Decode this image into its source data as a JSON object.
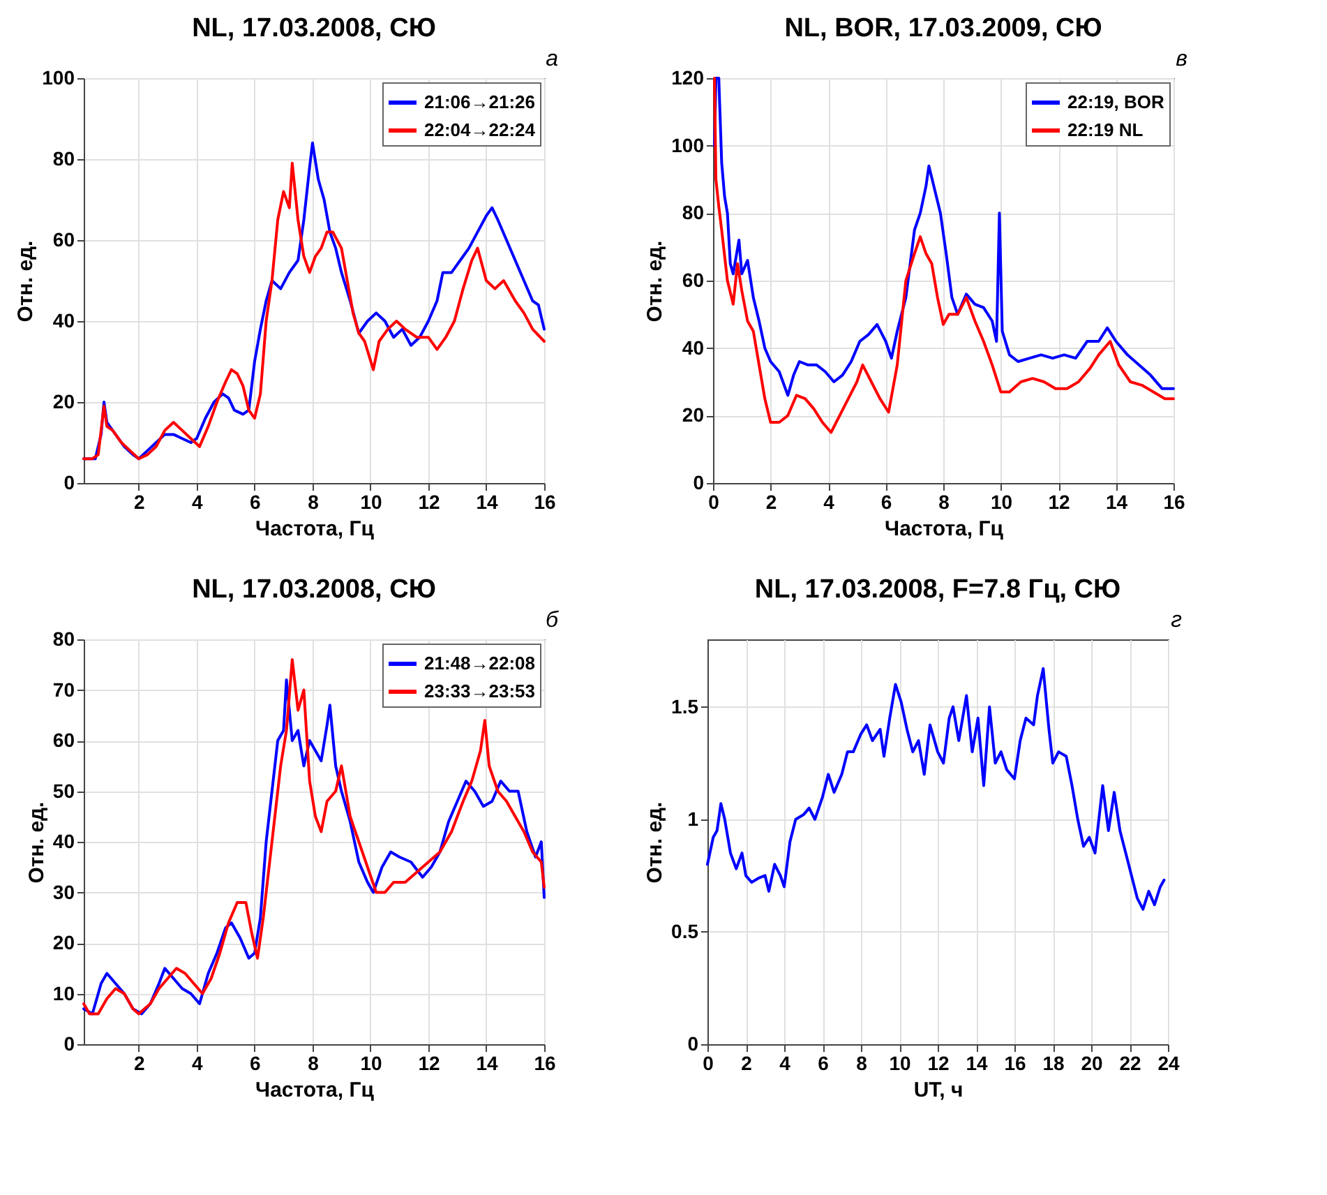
{
  "chart_data": [
    {
      "type": "line",
      "title": "NL, 17.03.2008, СЮ",
      "xlabel": "Частота, Гц",
      "ylabel": "Отн. ед.",
      "annotations": [
        "а"
      ],
      "xlim": [
        0.1,
        16
      ],
      "xticks": [
        2,
        4,
        6,
        8,
        10,
        12,
        14,
        16
      ],
      "ylim": [
        0,
        100
      ],
      "yticks": [
        0,
        20,
        40,
        60,
        80,
        100
      ],
      "grid": true,
      "legend": "top right",
      "line_style": "solid",
      "series": [
        {
          "name": "21:06→21:26",
          "color": "#0000ff",
          "x": [
            0.1,
            0.3,
            0.5,
            0.7,
            0.8,
            0.9,
            1.0,
            1.2,
            1.5,
            1.8,
            2.0,
            2.3,
            2.6,
            2.9,
            3.2,
            3.5,
            3.8,
            4.0,
            4.3,
            4.6,
            4.9,
            5.1,
            5.3,
            5.6,
            5.8,
            6.0,
            6.2,
            6.4,
            6.6,
            6.9,
            7.2,
            7.5,
            7.7,
            7.9,
            8.0,
            8.2,
            8.4,
            8.6,
            8.8,
            9.0,
            9.3,
            9.6,
            9.9,
            10.2,
            10.5,
            10.8,
            11.1,
            11.4,
            11.7,
            12.0,
            12.3,
            12.5,
            12.8,
            13.1,
            13.4,
            13.7,
            14.0,
            14.2,
            14.4,
            14.7,
            15.0,
            15.3,
            15.6,
            15.8,
            16.0
          ],
          "values": [
            6,
            6,
            6,
            12,
            20,
            15,
            14,
            12,
            9,
            7,
            6,
            8,
            10,
            12,
            12,
            11,
            10,
            11,
            16,
            20,
            22,
            21,
            18,
            17,
            18,
            30,
            38,
            45,
            50,
            48,
            52,
            55,
            65,
            78,
            84,
            75,
            70,
            62,
            58,
            52,
            45,
            37,
            40,
            42,
            40,
            36,
            38,
            34,
            36,
            40,
            45,
            52,
            52,
            55,
            58,
            62,
            66,
            68,
            65,
            60,
            55,
            50,
            45,
            44,
            38
          ]
        },
        {
          "name": "22:04→22:24",
          "color": "#ff0000",
          "x": [
            0.1,
            0.4,
            0.6,
            0.8,
            0.9,
            1.1,
            1.4,
            1.7,
            2.0,
            2.3,
            2.6,
            2.9,
            3.2,
            3.5,
            3.8,
            4.1,
            4.4,
            4.7,
            5.0,
            5.2,
            5.4,
            5.6,
            5.8,
            6.0,
            6.2,
            6.4,
            6.6,
            6.8,
            7.0,
            7.2,
            7.3,
            7.5,
            7.7,
            7.9,
            8.1,
            8.3,
            8.5,
            8.7,
            9.0,
            9.2,
            9.4,
            9.6,
            9.8,
            10.1,
            10.3,
            10.6,
            10.9,
            11.2,
            11.6,
            12.0,
            12.3,
            12.6,
            12.9,
            13.2,
            13.5,
            13.7,
            14.0,
            14.3,
            14.6,
            15.0,
            15.3,
            15.6,
            16.0
          ],
          "values": [
            6,
            6,
            7,
            19,
            14,
            13,
            10,
            8,
            6,
            7,
            9,
            13,
            15,
            13,
            11,
            9,
            14,
            20,
            25,
            28,
            27,
            24,
            18,
            16,
            22,
            40,
            50,
            65,
            72,
            68,
            79,
            65,
            56,
            52,
            56,
            58,
            62,
            62,
            58,
            50,
            42,
            37,
            35,
            28,
            35,
            38,
            40,
            38,
            36,
            36,
            33,
            36,
            40,
            48,
            55,
            58,
            50,
            48,
            50,
            45,
            42,
            38,
            35
          ]
        }
      ]
    },
    {
      "type": "line",
      "title": "NL,  BOR, 17.03.2009, СЮ",
      "xlabel": "Частота, Гц",
      "ylabel": "Отн. ед.",
      "annotations": [
        "в"
      ],
      "xlim": [
        0,
        16
      ],
      "xticks": [
        0,
        2,
        4,
        6,
        8,
        10,
        12,
        14,
        16
      ],
      "ylim": [
        0,
        120
      ],
      "yticks": [
        0,
        20,
        40,
        60,
        80,
        100,
        120
      ],
      "grid": true,
      "legend": "top right",
      "line_style": "solid",
      "series": [
        {
          "name": "22:19, BOR",
          "color": "#0000ff",
          "x": [
            0.05,
            0.1,
            0.2,
            0.3,
            0.4,
            0.5,
            0.6,
            0.7,
            0.9,
            1.0,
            1.2,
            1.4,
            1.6,
            1.8,
            2.0,
            2.3,
            2.6,
            2.8,
            3.0,
            3.3,
            3.6,
            3.9,
            4.2,
            4.5,
            4.8,
            5.1,
            5.4,
            5.7,
            6.0,
            6.2,
            6.4,
            6.7,
            7.0,
            7.2,
            7.4,
            7.5,
            7.7,
            7.9,
            8.1,
            8.3,
            8.5,
            8.8,
            9.1,
            9.4,
            9.7,
            9.85,
            9.95,
            10.05,
            10.3,
            10.6,
            11.0,
            11.4,
            11.8,
            12.2,
            12.6,
            13.0,
            13.4,
            13.7,
            14.0,
            14.4,
            14.8,
            15.2,
            15.6,
            16.0
          ],
          "values": [
            100,
            120,
            120,
            95,
            85,
            80,
            65,
            62,
            72,
            62,
            66,
            55,
            48,
            40,
            36,
            33,
            26,
            32,
            36,
            35,
            35,
            33,
            30,
            32,
            36,
            42,
            44,
            47,
            42,
            37,
            45,
            55,
            75,
            80,
            88,
            94,
            87,
            80,
            68,
            55,
            50,
            56,
            53,
            52,
            48,
            42,
            80,
            45,
            38,
            36,
            37,
            38,
            37,
            38,
            37,
            42,
            42,
            46,
            42,
            38,
            35,
            32,
            28,
            28
          ]
        },
        {
          "name": "22:19 NL",
          "color": "#ff0000",
          "x": [
            0.05,
            0.1,
            0.2,
            0.3,
            0.5,
            0.7,
            0.85,
            1.0,
            1.2,
            1.4,
            1.6,
            1.8,
            2.0,
            2.3,
            2.6,
            2.9,
            3.2,
            3.5,
            3.8,
            4.1,
            4.4,
            4.7,
            5.0,
            5.2,
            5.5,
            5.8,
            6.1,
            6.4,
            6.7,
            7.0,
            7.2,
            7.4,
            7.6,
            7.8,
            8.0,
            8.2,
            8.5,
            8.8,
            9.1,
            9.4,
            9.7,
            10.0,
            10.3,
            10.7,
            11.1,
            11.5,
            11.9,
            12.3,
            12.7,
            13.1,
            13.4,
            13.8,
            14.1,
            14.5,
            14.9,
            15.3,
            15.7,
            16.0
          ],
          "values": [
            120,
            90,
            82,
            75,
            60,
            53,
            65,
            57,
            48,
            45,
            35,
            25,
            18,
            18,
            20,
            26,
            25,
            22,
            18,
            15,
            20,
            25,
            30,
            35,
            30,
            25,
            21,
            35,
            60,
            68,
            73,
            68,
            65,
            55,
            47,
            50,
            50,
            55,
            48,
            42,
            35,
            27,
            27,
            30,
            31,
            30,
            28,
            28,
            30,
            34,
            38,
            42,
            35,
            30,
            29,
            27,
            25,
            25
          ]
        }
      ]
    },
    {
      "type": "line",
      "title": "NL, 17.03.2008, СЮ",
      "xlabel": "Частота, Гц",
      "ylabel": "Отн. ед.",
      "annotations": [
        "б"
      ],
      "xlim": [
        0.1,
        16
      ],
      "xticks": [
        2,
        4,
        6,
        8,
        10,
        12,
        14,
        16
      ],
      "ylim": [
        0,
        80
      ],
      "yticks": [
        0,
        10,
        20,
        30,
        40,
        50,
        60,
        70,
        80
      ],
      "grid": true,
      "legend": "top right",
      "line_style": "solid",
      "series": [
        {
          "name": "21:48→22:08",
          "color": "#0000ff",
          "x": [
            0.1,
            0.4,
            0.7,
            0.9,
            1.2,
            1.5,
            1.8,
            2.1,
            2.4,
            2.7,
            2.9,
            3.2,
            3.5,
            3.8,
            4.1,
            4.4,
            4.7,
            5.0,
            5.2,
            5.5,
            5.8,
            6.0,
            6.2,
            6.4,
            6.6,
            6.8,
            7.0,
            7.1,
            7.3,
            7.5,
            7.7,
            7.9,
            8.1,
            8.3,
            8.5,
            8.6,
            8.8,
            9.0,
            9.3,
            9.6,
            9.9,
            10.1,
            10.4,
            10.7,
            11.0,
            11.4,
            11.8,
            12.1,
            12.4,
            12.7,
            13.0,
            13.3,
            13.6,
            13.9,
            14.2,
            14.5,
            14.8,
            15.1,
            15.4,
            15.7,
            15.9,
            16.0
          ],
          "values": [
            7,
            6,
            12,
            14,
            12,
            10,
            7,
            6,
            8,
            12,
            15,
            13,
            11,
            10,
            8,
            14,
            18,
            23,
            24,
            21,
            17,
            18,
            25,
            40,
            50,
            60,
            62,
            72,
            60,
            62,
            55,
            60,
            58,
            56,
            63,
            67,
            55,
            50,
            44,
            36,
            32,
            30,
            35,
            38,
            37,
            36,
            33,
            35,
            38,
            44,
            48,
            52,
            50,
            47,
            48,
            52,
            50,
            50,
            42,
            37,
            40,
            29
          ]
        },
        {
          "name": "23:33→23:53",
          "color": "#ff0000",
          "x": [
            0.1,
            0.3,
            0.6,
            0.9,
            1.2,
            1.5,
            1.8,
            2.0,
            2.4,
            2.7,
            3.0,
            3.3,
            3.6,
            3.9,
            4.2,
            4.5,
            4.8,
            5.1,
            5.4,
            5.7,
            5.9,
            6.1,
            6.3,
            6.5,
            6.7,
            6.9,
            7.1,
            7.3,
            7.5,
            7.7,
            7.9,
            8.1,
            8.3,
            8.5,
            8.8,
            9.0,
            9.3,
            9.6,
            9.9,
            10.2,
            10.5,
            10.8,
            11.2,
            11.6,
            12.0,
            12.4,
            12.8,
            13.2,
            13.5,
            13.8,
            13.95,
            14.1,
            14.4,
            14.7,
            15.0,
            15.3,
            15.6,
            15.9,
            16.0
          ],
          "values": [
            8,
            6,
            6,
            9,
            11,
            10,
            7,
            6,
            8,
            11,
            13,
            15,
            14,
            12,
            10,
            13,
            18,
            24,
            28,
            28,
            22,
            17,
            25,
            35,
            45,
            55,
            62,
            76,
            66,
            70,
            52,
            45,
            42,
            48,
            50,
            55,
            45,
            40,
            35,
            30,
            30,
            32,
            32,
            34,
            36,
            38,
            42,
            48,
            52,
            58,
            64,
            55,
            50,
            48,
            45,
            42,
            38,
            36,
            31
          ]
        }
      ]
    },
    {
      "type": "line",
      "title": "NL, 17.03.2008, F=7.8 Гц, СЮ",
      "xlabel": "UT, ч",
      "ylabel": "Отн. ед.",
      "annotations": [
        "г"
      ],
      "xlim": [
        0,
        24
      ],
      "xticks": [
        0,
        2,
        4,
        6,
        8,
        10,
        12,
        14,
        16,
        18,
        20,
        22,
        24
      ],
      "ylim": [
        0,
        1.8
      ],
      "yticks": [
        0,
        0.5,
        1,
        1.5
      ],
      "grid": true,
      "line_style": "solid",
      "series": [
        {
          "color": "#0000ff",
          "x": [
            0,
            0.3,
            0.5,
            0.7,
            0.9,
            1.2,
            1.5,
            1.8,
            2.0,
            2.3,
            2.7,
            3.0,
            3.2,
            3.5,
            3.8,
            4.0,
            4.3,
            4.6,
            5.0,
            5.3,
            5.6,
            6.0,
            6.3,
            6.6,
            7.0,
            7.3,
            7.6,
            8.0,
            8.3,
            8.6,
            9.0,
            9.2,
            9.5,
            9.8,
            10.1,
            10.4,
            10.7,
            11.0,
            11.3,
            11.6,
            12.0,
            12.3,
            12.6,
            12.8,
            13.1,
            13.5,
            13.8,
            14.1,
            14.4,
            14.7,
            15.0,
            15.3,
            15.6,
            16.0,
            16.3,
            16.6,
            17.0,
            17.2,
            17.5,
            17.8,
            18.0,
            18.3,
            18.7,
            19.0,
            19.3,
            19.6,
            19.9,
            20.2,
            20.6,
            20.9,
            21.2,
            21.5,
            21.8,
            22.1,
            22.4,
            22.7,
            23.0,
            23.3,
            23.6,
            23.8
          ],
          "values": [
            0.8,
            0.92,
            0.95,
            1.07,
            1.0,
            0.85,
            0.78,
            0.85,
            0.75,
            0.72,
            0.74,
            0.75,
            0.68,
            0.8,
            0.75,
            0.7,
            0.9,
            1.0,
            1.02,
            1.05,
            1.0,
            1.1,
            1.2,
            1.12,
            1.2,
            1.3,
            1.3,
            1.38,
            1.42,
            1.35,
            1.4,
            1.28,
            1.45,
            1.6,
            1.52,
            1.4,
            1.3,
            1.35,
            1.2,
            1.42,
            1.3,
            1.25,
            1.45,
            1.5,
            1.35,
            1.55,
            1.3,
            1.45,
            1.15,
            1.5,
            1.25,
            1.3,
            1.22,
            1.18,
            1.35,
            1.45,
            1.42,
            1.55,
            1.67,
            1.4,
            1.25,
            1.3,
            1.28,
            1.15,
            1.0,
            0.88,
            0.92,
            0.85,
            1.15,
            0.95,
            1.12,
            0.95,
            0.85,
            0.75,
            0.65,
            0.6,
            0.68,
            0.62,
            0.7,
            0.73
          ]
        }
      ]
    }
  ]
}
